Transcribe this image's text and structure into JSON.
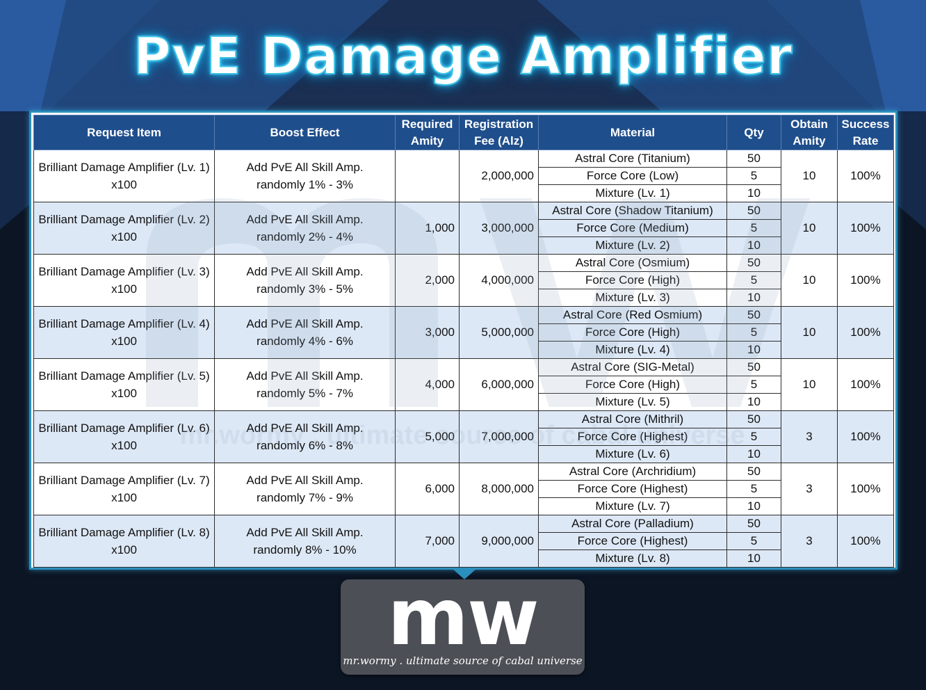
{
  "title": "PvE Damage Amplifier",
  "headers": {
    "request_item": "Request Item",
    "boost_effect": "Boost Effect",
    "required_amity_l1": "Required",
    "required_amity_l2": "Amity",
    "reg_fee_l1": "Registration",
    "reg_fee_l2": "Fee (Alz)",
    "material": "Material",
    "qty": "Qty",
    "obtain_amity_l1": "Obtain",
    "obtain_amity_l2": "Amity",
    "success_rate_l1": "Success",
    "success_rate_l2": "Rate"
  },
  "rows": [
    {
      "item": "Brilliant Damage Amplifier (Lv. 1)",
      "qty_item": "x100",
      "effect_l1": "Add PvE All Skill Amp.",
      "effect_l2": "randomly 1% - 3%",
      "required_amity": "",
      "fee": "2,000,000",
      "materials": [
        {
          "name": "Astral Core (Titanium)",
          "qty": "50"
        },
        {
          "name": "Force Core (Low)",
          "qty": "5"
        },
        {
          "name": "Mixture (Lv. 1)",
          "qty": "10"
        }
      ],
      "obtain_amity": "10",
      "success_rate": "100%"
    },
    {
      "item": "Brilliant Damage Amplifier (Lv. 2)",
      "qty_item": "x100",
      "effect_l1": "Add PvE All Skill Amp.",
      "effect_l2": "randomly 2% - 4%",
      "required_amity": "1,000",
      "fee": "3,000,000",
      "materials": [
        {
          "name": "Astral Core (Shadow Titanium)",
          "qty": "50"
        },
        {
          "name": "Force Core (Medium)",
          "qty": "5"
        },
        {
          "name": "Mixture (Lv. 2)",
          "qty": "10"
        }
      ],
      "obtain_amity": "10",
      "success_rate": "100%"
    },
    {
      "item": "Brilliant Damage Amplifier (Lv. 3)",
      "qty_item": "x100",
      "effect_l1": "Add PvE All Skill Amp.",
      "effect_l2": "randomly 3% - 5%",
      "required_amity": "2,000",
      "fee": "4,000,000",
      "materials": [
        {
          "name": "Astral Core (Osmium)",
          "qty": "50"
        },
        {
          "name": "Force Core (High)",
          "qty": "5"
        },
        {
          "name": "Mixture (Lv. 3)",
          "qty": "10"
        }
      ],
      "obtain_amity": "10",
      "success_rate": "100%"
    },
    {
      "item": "Brilliant Damage Amplifier (Lv. 4)",
      "qty_item": "x100",
      "effect_l1": "Add PvE All Skill Amp.",
      "effect_l2": "randomly 4% - 6%",
      "required_amity": "3,000",
      "fee": "5,000,000",
      "materials": [
        {
          "name": "Astral Core (Red Osmium)",
          "qty": "50"
        },
        {
          "name": "Force Core (High)",
          "qty": "5"
        },
        {
          "name": "Mixture (Lv. 4)",
          "qty": "10"
        }
      ],
      "obtain_amity": "10",
      "success_rate": "100%"
    },
    {
      "item": "Brilliant Damage Amplifier (Lv. 5)",
      "qty_item": "x100",
      "effect_l1": "Add PvE All Skill Amp.",
      "effect_l2": "randomly 5% - 7%",
      "required_amity": "4,000",
      "fee": "6,000,000",
      "materials": [
        {
          "name": "Astral Core (SIG-Metal)",
          "qty": "50"
        },
        {
          "name": "Force Core (High)",
          "qty": "5"
        },
        {
          "name": "Mixture (Lv. 5)",
          "qty": "10"
        }
      ],
      "obtain_amity": "10",
      "success_rate": "100%"
    },
    {
      "item": "Brilliant Damage Amplifier (Lv. 6)",
      "qty_item": "x100",
      "effect_l1": "Add PvE All Skill Amp.",
      "effect_l2": "randomly 6% - 8%",
      "required_amity": "5,000",
      "fee": "7,000,000",
      "materials": [
        {
          "name": "Astral Core (Mithril)",
          "qty": "50"
        },
        {
          "name": "Force Core (Highest)",
          "qty": "5"
        },
        {
          "name": "Mixture (Lv. 6)",
          "qty": "10"
        }
      ],
      "obtain_amity": "3",
      "success_rate": "100%"
    },
    {
      "item": "Brilliant Damage Amplifier (Lv. 7)",
      "qty_item": "x100",
      "effect_l1": "Add PvE All Skill Amp.",
      "effect_l2": "randomly 7% - 9%",
      "required_amity": "6,000",
      "fee": "8,000,000",
      "materials": [
        {
          "name": "Astral Core (Archridium)",
          "qty": "50"
        },
        {
          "name": "Force Core (Highest)",
          "qty": "5"
        },
        {
          "name": "Mixture (Lv. 7)",
          "qty": "10"
        }
      ],
      "obtain_amity": "3",
      "success_rate": "100%"
    },
    {
      "item": "Brilliant Damage Amplifier (Lv. 8)",
      "qty_item": "x100",
      "effect_l1": "Add PvE All Skill Amp.",
      "effect_l2": "randomly 8% - 10%",
      "required_amity": "7,000",
      "fee": "9,000,000",
      "materials": [
        {
          "name": "Astral Core (Palladium)",
          "qty": "50"
        },
        {
          "name": "Force Core (Highest)",
          "qty": "5"
        },
        {
          "name": "Mixture (Lv. 8)",
          "qty": "10"
        }
      ],
      "obtain_amity": "3",
      "success_rate": "100%"
    }
  ],
  "watermark": {
    "mark": "mw",
    "text": "mr.wormy . ultimate source of cabal universe"
  },
  "logo": {
    "mark": "mw",
    "tagline": "mr.wormy . ultimate source of cabal universe"
  },
  "colors": {
    "header_bg": "#1f4e8c",
    "alt_row_bg": "#dde8f6",
    "frame": "#2b8fbd",
    "title_glow": "#3ec4e6"
  }
}
